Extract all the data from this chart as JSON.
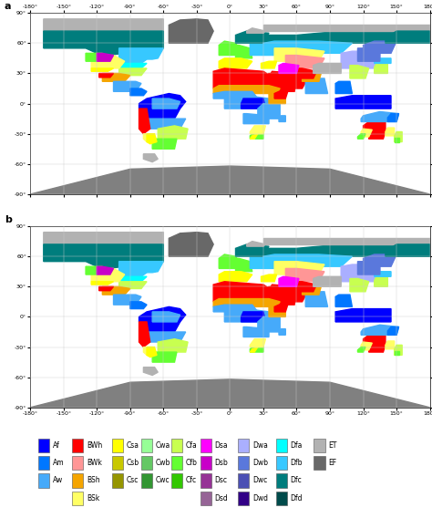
{
  "title_a": "a",
  "title_b": "b",
  "legend_columns": [
    [
      [
        "Af",
        "#0000FF"
      ],
      [
        "Am",
        "#0077FF"
      ],
      [
        "Aw",
        "#46AAFA"
      ]
    ],
    [
      [
        "BWh",
        "#FF0000"
      ],
      [
        "BWk",
        "#FF9696"
      ],
      [
        "BSh",
        "#F5A500"
      ],
      [
        "BSk",
        "#FFFF64"
      ]
    ],
    [
      [
        "Csa",
        "#FFFF00"
      ],
      [
        "Csb",
        "#C8C800"
      ],
      [
        "Csc",
        "#969600"
      ]
    ],
    [
      [
        "Cwa",
        "#96FF96"
      ],
      [
        "Cwb",
        "#64C864"
      ],
      [
        "Cwc",
        "#329632"
      ]
    ],
    [
      [
        "Cfa",
        "#C8FF50"
      ],
      [
        "Cfb",
        "#64FF32"
      ],
      [
        "Cfc",
        "#32C800"
      ]
    ],
    [
      [
        "Dsa",
        "#FF00FF"
      ],
      [
        "Dsb",
        "#C800C8"
      ],
      [
        "Dsc",
        "#963296"
      ],
      [
        "Dsd",
        "#966496"
      ]
    ],
    [
      [
        "Dwa",
        "#AAAFFF"
      ],
      [
        "Dwb",
        "#5A78DC"
      ],
      [
        "Dwc",
        "#4B50B4"
      ],
      [
        "Dwd",
        "#320087"
      ]
    ],
    [
      [
        "Dfa",
        "#00FFFF"
      ],
      [
        "Dfb",
        "#37C8FF"
      ],
      [
        "Dfc",
        "#007D7D"
      ],
      [
        "Dfd",
        "#004B4B"
      ]
    ],
    [
      [
        "ET",
        "#B2B2B2"
      ],
      [
        "EF",
        "#686868"
      ]
    ]
  ],
  "xticks": [
    -180,
    -150,
    -120,
    -90,
    -60,
    -30,
    0,
    30,
    60,
    90,
    120,
    150,
    180
  ],
  "xtick_labels": [
    "-180°",
    "-150°",
    "-120°",
    "-90°",
    "-60°",
    "-30°",
    "0°",
    "30°",
    "60°",
    "90°",
    "120°",
    "150°",
    "180°"
  ],
  "yticks": [
    -90,
    -60,
    -30,
    0,
    30,
    60,
    90
  ],
  "ytick_labels": [
    "-90°",
    "-60°",
    "-30°",
    "0°",
    "30°",
    "60°",
    "90°"
  ],
  "ocean_color": "#FFFFFF",
  "antarctica_color": "#808080",
  "grid_color": "#CCCCCC",
  "border_color": "#666666",
  "climate_zones_a": {
    "boreal_na": {
      "coords": [
        [
          -168,
          55
        ],
        [
          -60,
          55
        ],
        [
          -60,
          75
        ],
        [
          -168,
          75
        ]
      ],
      "color": "#007D7D"
    },
    "dfb_na": {
      "coords": [
        [
          -130,
          45
        ],
        [
          -60,
          45
        ],
        [
          -60,
          58
        ],
        [
          -130,
          58
        ]
      ],
      "color": "#37C8FF"
    },
    "cfa_na": {
      "coords": [
        [
          -100,
          30
        ],
        [
          -75,
          30
        ],
        [
          -75,
          40
        ],
        [
          -100,
          40
        ]
      ],
      "color": "#C8FF50"
    },
    "csa_na": {
      "coords": [
        [
          -125,
          32
        ],
        [
          -110,
          32
        ],
        [
          -110,
          45
        ],
        [
          -125,
          45
        ]
      ],
      "color": "#FFFF00"
    },
    "bsh_na": {
      "coords": [
        [
          -115,
          25
        ],
        [
          -95,
          25
        ],
        [
          -95,
          37
        ],
        [
          -115,
          37
        ]
      ],
      "color": "#F5A500"
    },
    "bsk_na": {
      "coords": [
        [
          -115,
          37
        ],
        [
          -95,
          37
        ],
        [
          -95,
          50
        ],
        [
          -115,
          50
        ]
      ],
      "color": "#FFFF64"
    },
    "greenland": {
      "coords": [
        [
          -55,
          60
        ],
        [
          -15,
          60
        ],
        [
          -15,
          84
        ],
        [
          -55,
          84
        ]
      ],
      "color": "#B2B2B2"
    },
    "af_sa": {
      "coords": [
        [
          -82,
          -5
        ],
        [
          -35,
          -5
        ],
        [
          -35,
          10
        ],
        [
          -82,
          10
        ]
      ],
      "color": "#0000FF"
    },
    "aw_sa": {
      "coords": [
        [
          -80,
          -25
        ],
        [
          -40,
          -25
        ],
        [
          -40,
          -5
        ],
        [
          -80,
          -5
        ]
      ],
      "color": "#46AAFA"
    },
    "cfa_sa": {
      "coords": [
        [
          -75,
          -40
        ],
        [
          -45,
          -40
        ],
        [
          -45,
          -25
        ],
        [
          -75,
          -25
        ]
      ],
      "color": "#C8FF50"
    },
    "bwh_africa": {
      "coords": [
        [
          -15,
          15
        ],
        [
          55,
          15
        ],
        [
          55,
          35
        ],
        [
          -15,
          35
        ]
      ],
      "color": "#FF0000"
    },
    "aw_africa": {
      "coords": [
        [
          -15,
          -15
        ],
        [
          50,
          -15
        ],
        [
          50,
          15
        ],
        [
          -15,
          15
        ]
      ],
      "color": "#46AAFA"
    },
    "af_africa": {
      "coords": [
        [
          8,
          -5
        ],
        [
          35,
          -5
        ],
        [
          35,
          8
        ],
        [
          8,
          8
        ]
      ],
      "color": "#0000FF"
    },
    "cfb_europe": {
      "coords": [
        [
          -10,
          45
        ],
        [
          25,
          45
        ],
        [
          25,
          60
        ],
        [
          -10,
          60
        ]
      ],
      "color": "#64FF32"
    },
    "csa_europe": {
      "coords": [
        [
          -5,
          35
        ],
        [
          35,
          35
        ],
        [
          35,
          46
        ],
        [
          -5,
          46
        ]
      ],
      "color": "#FFFF00"
    },
    "dfb_europe": {
      "coords": [
        [
          15,
          55
        ],
        [
          55,
          55
        ],
        [
          55,
          65
        ],
        [
          15,
          65
        ]
      ],
      "color": "#37C8FF"
    },
    "dfc_russia": {
      "coords": [
        [
          15,
          60
        ],
        [
          180,
          60
        ],
        [
          180,
          72
        ],
        [
          15,
          72
        ]
      ],
      "color": "#007D7D"
    },
    "dwa_asia": {
      "coords": [
        [
          95,
          40
        ],
        [
          135,
          40
        ],
        [
          135,
          55
        ],
        [
          95,
          55
        ]
      ],
      "color": "#AAAFFF"
    },
    "bwh_mideast": {
      "coords": [
        [
          35,
          15
        ],
        [
          75,
          15
        ],
        [
          75,
          35
        ],
        [
          35,
          35
        ]
      ],
      "color": "#FF0000"
    },
    "bwh_arabia": {
      "coords": [
        [
          35,
          15
        ],
        [
          58,
          15
        ],
        [
          58,
          30
        ],
        [
          35,
          30
        ]
      ],
      "color": "#FF0000"
    },
    "am_sea": {
      "coords": [
        [
          95,
          5
        ],
        [
          135,
          5
        ],
        [
          135,
          22
        ],
        [
          95,
          22
        ]
      ],
      "color": "#0077FF"
    },
    "af_sea": {
      "coords": [
        [
          95,
          -8
        ],
        [
          135,
          -8
        ],
        [
          135,
          8
        ],
        [
          95,
          8
        ]
      ],
      "color": "#0000FF"
    },
    "bwh_australia": {
      "coords": [
        [
          115,
          -35
        ],
        [
          140,
          -35
        ],
        [
          140,
          -15
        ],
        [
          115,
          -15
        ]
      ],
      "color": "#FF0000"
    },
    "cfa_australia": {
      "coords": [
        [
          140,
          -38
        ],
        [
          155,
          -38
        ],
        [
          155,
          -28
        ],
        [
          140,
          -28
        ]
      ],
      "color": "#C8FF50"
    },
    "dfc_ne_russia": {
      "coords": [
        [
          140,
          60
        ],
        [
          180,
          60
        ],
        [
          180,
          72
        ],
        [
          140,
          72
        ]
      ],
      "color": "#007D7D"
    },
    "et_arctic_na": {
      "coords": [
        [
          -168,
          72
        ],
        [
          -50,
          72
        ],
        [
          -50,
          84
        ],
        [
          -168,
          84
        ]
      ],
      "color": "#B2B2B2"
    },
    "et_asia": {
      "coords": [
        [
          60,
          70
        ],
        [
          140,
          70
        ],
        [
          140,
          78
        ],
        [
          60,
          78
        ]
      ],
      "color": "#B2B2B2"
    }
  },
  "figsize": [
    4.74,
    5.68
  ],
  "dpi": 100
}
